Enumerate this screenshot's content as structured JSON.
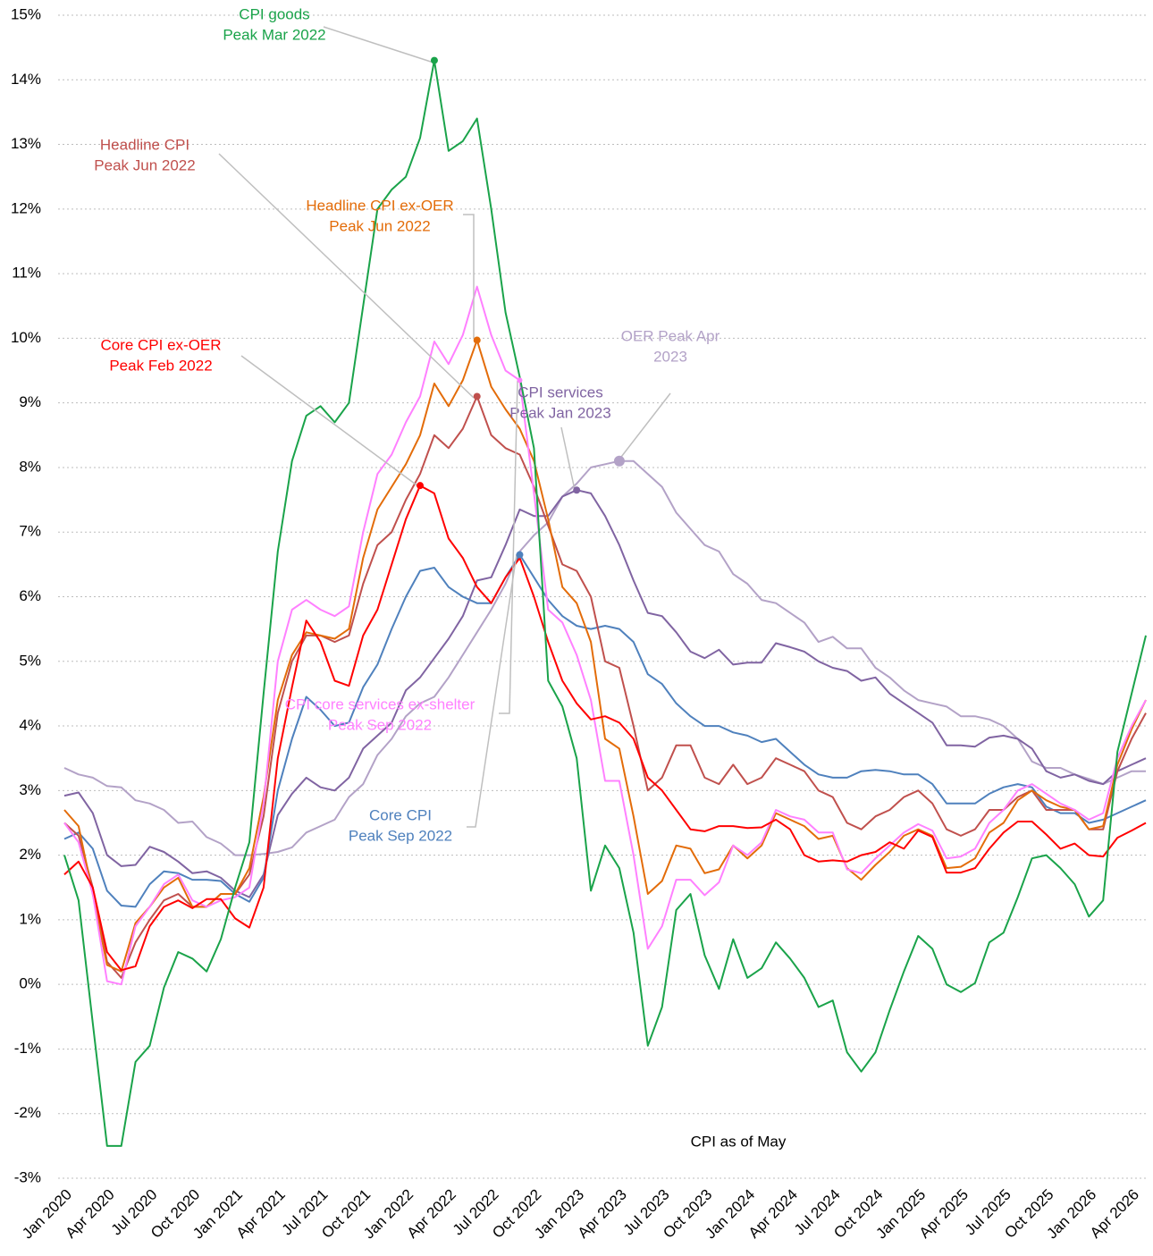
{
  "chart_data": {
    "type": "line",
    "categories": [
      "Jan 2020",
      null,
      null,
      "Apr 2020",
      null,
      null,
      "Jul 2020",
      null,
      null,
      "Oct 2020",
      null,
      null,
      "Jan 2021",
      null,
      null,
      "Apr 2021",
      null,
      null,
      "Jul 2021",
      null,
      null,
      "Oct 2021",
      null,
      null,
      "Jan 2022",
      null,
      null,
      "Apr 2022",
      null,
      null,
      "Jul 2022",
      null,
      null,
      "Oct 2022",
      null,
      null,
      "Jan 2023",
      null,
      null,
      "Apr 2023",
      null,
      null,
      "Jul 2023",
      null,
      null,
      "Oct 2023",
      null,
      null,
      "Jan 2024",
      null,
      null,
      "Apr 2024",
      null,
      null,
      "Jul 2024",
      null,
      null,
      "Oct 2024",
      null,
      null,
      "Jan 2025",
      null,
      null,
      "Apr 2025",
      null,
      null,
      "Jul 2025",
      null,
      null,
      "Oct 2025",
      null,
      null,
      "Jan 2026",
      null,
      null,
      "Apr 2026",
      null
    ],
    "ylim": [
      -3,
      15
    ],
    "yticks": [
      {
        "value": -3,
        "label": "-3%"
      },
      {
        "value": -2,
        "label": "-2%"
      },
      {
        "value": -1,
        "label": "-1%"
      },
      {
        "value": 0,
        "label": "0%"
      },
      {
        "value": 1,
        "label": "1%"
      },
      {
        "value": 2,
        "label": "2%"
      },
      {
        "value": 3,
        "label": "3%"
      },
      {
        "value": 4,
        "label": "4%"
      },
      {
        "value": 5,
        "label": "5%"
      },
      {
        "value": 6,
        "label": "6%"
      },
      {
        "value": 7,
        "label": "7%"
      },
      {
        "value": 8,
        "label": "8%"
      },
      {
        "value": 9,
        "label": "9%"
      },
      {
        "value": 10,
        "label": "10%"
      },
      {
        "value": 11,
        "label": "11%"
      },
      {
        "value": 12,
        "label": "12%"
      },
      {
        "value": 13,
        "label": "13%"
      },
      {
        "value": 14,
        "label": "14%"
      },
      {
        "value": 15,
        "label": "15%"
      }
    ],
    "grid": true,
    "note": "CPI as of May",
    "series": [
      {
        "color": "#1aa34a",
        "values": [
          2.0,
          1.3,
          -0.6,
          -2.5,
          -2.5,
          -1.2,
          -0.95,
          -0.05,
          0.5,
          0.4,
          0.2,
          0.7,
          1.5,
          2.2,
          4.5,
          6.7,
          8.1,
          8.8,
          8.95,
          8.7,
          9.0,
          10.5,
          12.0,
          12.3,
          12.5,
          13.1,
          14.3,
          12.9,
          13.05,
          13.4,
          12.0,
          10.4,
          9.4,
          8.3,
          4.7,
          4.3,
          3.5,
          1.45,
          2.15,
          1.8,
          0.8,
          -0.95,
          -0.35,
          1.15,
          1.4,
          0.45,
          -0.07,
          0.7,
          0.1,
          0.25,
          0.65,
          0.4,
          0.1,
          -0.35,
          -0.25,
          -1.05,
          -1.35,
          -1.05,
          -0.4,
          0.2,
          0.75,
          0.55,
          0.0,
          -0.12,
          0.02,
          0.65,
          0.8,
          1.35,
          1.95,
          2.0,
          1.8,
          1.55,
          1.05,
          1.3,
          3.6,
          4.5,
          5.4
        ]
      },
      {
        "color": "#c0504d",
        "values": [
          2.5,
          2.3,
          1.5,
          0.35,
          0.1,
          0.65,
          1.0,
          1.3,
          1.4,
          1.2,
          1.2,
          1.4,
          1.4,
          1.7,
          2.6,
          4.2,
          5.0,
          5.4,
          5.4,
          5.3,
          5.4,
          6.2,
          6.8,
          7.0,
          7.5,
          7.9,
          8.5,
          8.3,
          8.6,
          9.1,
          8.5,
          8.3,
          8.2,
          7.7,
          7.1,
          6.5,
          6.4,
          6.0,
          5.0,
          4.9,
          4.0,
          3.0,
          3.2,
          3.7,
          3.7,
          3.2,
          3.1,
          3.4,
          3.1,
          3.2,
          3.5,
          3.4,
          3.3,
          3.0,
          2.9,
          2.5,
          2.4,
          2.6,
          2.7,
          2.9,
          3.0,
          2.8,
          2.4,
          2.3,
          2.4,
          2.7,
          2.7,
          2.9,
          3.0,
          2.7,
          2.7,
          2.7,
          2.4,
          2.4,
          3.3,
          3.8,
          4.2
        ]
      },
      {
        "color": "#e36c09",
        "values": [
          2.7,
          2.45,
          1.4,
          0.3,
          0.2,
          0.95,
          1.2,
          1.5,
          1.65,
          1.2,
          1.2,
          1.4,
          1.4,
          1.8,
          2.9,
          4.4,
          5.1,
          5.45,
          5.4,
          5.35,
          5.5,
          6.6,
          7.35,
          7.7,
          8.05,
          8.5,
          9.3,
          8.95,
          9.35,
          9.97,
          9.25,
          8.9,
          8.6,
          8.1,
          7.2,
          6.15,
          5.9,
          5.3,
          3.8,
          3.65,
          2.6,
          1.4,
          1.6,
          2.15,
          2.1,
          1.72,
          1.78,
          2.15,
          1.95,
          2.15,
          2.65,
          2.55,
          2.45,
          2.25,
          2.3,
          1.8,
          1.62,
          1.85,
          2.05,
          2.3,
          2.4,
          2.3,
          1.8,
          1.82,
          1.95,
          2.35,
          2.5,
          2.85,
          3.0,
          2.85,
          2.75,
          2.7,
          2.4,
          2.45,
          3.4,
          3.95,
          4.4
        ]
      },
      {
        "color": "#ff0000",
        "values": [
          1.7,
          1.9,
          1.5,
          0.5,
          0.22,
          0.28,
          0.9,
          1.2,
          1.3,
          1.18,
          1.32,
          1.32,
          1.02,
          0.88,
          1.5,
          3.5,
          4.6,
          5.63,
          5.3,
          4.7,
          4.62,
          5.4,
          5.8,
          6.5,
          7.2,
          7.72,
          7.6,
          6.9,
          6.6,
          6.15,
          5.9,
          6.3,
          6.6,
          6.0,
          5.3,
          4.7,
          4.35,
          4.1,
          4.15,
          4.05,
          3.8,
          3.2,
          3.0,
          2.7,
          2.4,
          2.37,
          2.45,
          2.45,
          2.42,
          2.43,
          2.55,
          2.4,
          2.0,
          1.9,
          1.92,
          1.9,
          2.0,
          2.05,
          2.2,
          2.1,
          2.38,
          2.28,
          1.73,
          1.73,
          1.8,
          2.1,
          2.35,
          2.52,
          2.52,
          2.32,
          2.1,
          2.18,
          2.0,
          1.98,
          2.27,
          2.38,
          2.5
        ]
      },
      {
        "color": "#ff80ff",
        "values": [
          2.5,
          2.2,
          1.4,
          0.05,
          0.0,
          0.9,
          1.2,
          1.55,
          1.7,
          1.3,
          1.2,
          1.3,
          1.35,
          1.5,
          2.8,
          5.0,
          5.8,
          5.95,
          5.8,
          5.7,
          5.85,
          7.0,
          7.9,
          8.2,
          8.7,
          9.1,
          9.95,
          9.6,
          10.05,
          10.8,
          10.05,
          9.5,
          9.35,
          7.6,
          5.8,
          5.6,
          5.1,
          4.4,
          3.15,
          3.15,
          2.0,
          0.55,
          0.9,
          1.62,
          1.62,
          1.38,
          1.58,
          2.15,
          2.0,
          2.2,
          2.7,
          2.6,
          2.55,
          2.35,
          2.35,
          1.78,
          1.72,
          1.95,
          2.15,
          2.35,
          2.48,
          2.38,
          1.95,
          1.98,
          2.1,
          2.5,
          2.7,
          3.0,
          3.1,
          2.95,
          2.8,
          2.7,
          2.55,
          2.65,
          3.5,
          4.0,
          4.4
        ]
      },
      {
        "color": "#b3a2c7",
        "values": [
          3.35,
          3.25,
          3.2,
          3.07,
          3.05,
          2.85,
          2.8,
          2.7,
          2.5,
          2.52,
          2.28,
          2.18,
          2.0,
          2.0,
          2.02,
          2.05,
          2.12,
          2.35,
          2.45,
          2.55,
          2.9,
          3.1,
          3.55,
          3.8,
          4.15,
          4.35,
          4.45,
          4.75,
          5.1,
          5.45,
          5.8,
          6.2,
          6.7,
          6.95,
          7.15,
          7.55,
          7.75,
          8.0,
          8.05,
          8.1,
          8.1,
          7.9,
          7.7,
          7.3,
          7.05,
          6.8,
          6.7,
          6.35,
          6.2,
          5.95,
          5.9,
          5.75,
          5.6,
          5.3,
          5.38,
          5.2,
          5.2,
          4.9,
          4.75,
          4.55,
          4.4,
          4.35,
          4.3,
          4.15,
          4.15,
          4.1,
          4.0,
          3.8,
          3.45,
          3.35,
          3.35,
          3.25,
          3.18,
          3.1,
          3.2,
          3.3,
          3.3
        ]
      },
      {
        "color": "#8064a2",
        "values": [
          2.92,
          2.97,
          2.65,
          2.0,
          1.83,
          1.85,
          2.13,
          2.05,
          1.9,
          1.72,
          1.75,
          1.65,
          1.45,
          1.35,
          1.7,
          2.62,
          2.95,
          3.2,
          3.05,
          3.0,
          3.2,
          3.65,
          3.85,
          4.05,
          4.55,
          4.75,
          5.05,
          5.35,
          5.7,
          6.25,
          6.3,
          6.8,
          7.35,
          7.25,
          7.25,
          7.55,
          7.65,
          7.6,
          7.25,
          6.8,
          6.25,
          5.75,
          5.7,
          5.45,
          5.15,
          5.05,
          5.18,
          4.95,
          4.98,
          4.98,
          5.28,
          5.22,
          5.15,
          5.0,
          4.9,
          4.85,
          4.7,
          4.75,
          4.5,
          4.35,
          4.2,
          4.05,
          3.7,
          3.7,
          3.68,
          3.82,
          3.85,
          3.8,
          3.65,
          3.3,
          3.2,
          3.25,
          3.15,
          3.1,
          3.3,
          3.4,
          3.5
        ]
      },
      {
        "color": "#4f81bd",
        "values": [
          2.25,
          2.35,
          2.1,
          1.45,
          1.22,
          1.2,
          1.55,
          1.75,
          1.72,
          1.62,
          1.62,
          1.6,
          1.4,
          1.28,
          1.65,
          3.0,
          3.8,
          4.45,
          4.25,
          4.0,
          4.05,
          4.6,
          4.95,
          5.5,
          6.0,
          6.4,
          6.45,
          6.15,
          6.0,
          5.9,
          5.9,
          6.3,
          6.65,
          6.3,
          5.95,
          5.7,
          5.55,
          5.5,
          5.55,
          5.5,
          5.3,
          4.8,
          4.65,
          4.35,
          4.15,
          4.0,
          4.0,
          3.9,
          3.85,
          3.75,
          3.8,
          3.6,
          3.4,
          3.25,
          3.2,
          3.2,
          3.3,
          3.32,
          3.3,
          3.25,
          3.25,
          3.1,
          2.8,
          2.8,
          2.8,
          2.95,
          3.05,
          3.1,
          3.05,
          2.75,
          2.65,
          2.65,
          2.5,
          2.55,
          2.65,
          2.75,
          2.85
        ]
      }
    ],
    "annotations": [
      {
        "text": [
          "CPI goods",
          "Peak Mar 2022"
        ]
      },
      {
        "text": [
          "Headline CPI",
          "Peak Jun 2022"
        ]
      },
      {
        "text": [
          "Headline CPI ex-OER",
          "Peak Jun 2022"
        ]
      },
      {
        "text": [
          "Core CPI ex-OER",
          "Peak Feb 2022"
        ]
      },
      {
        "text": [
          "OER Peak Apr",
          "2023"
        ]
      },
      {
        "text": [
          "CPI services",
          "Peak Jan 2023"
        ]
      },
      {
        "text": [
          "CPI core services ex-shelter",
          "Peak Sep 2022"
        ]
      },
      {
        "text": [
          "Core CPI",
          "Peak Sep 2022"
        ]
      }
    ]
  }
}
